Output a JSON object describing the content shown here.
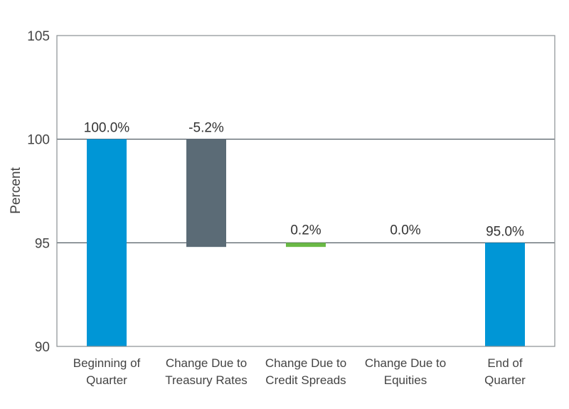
{
  "chart_data": {
    "type": "bar",
    "subtype": "waterfall",
    "title": "",
    "xlabel": "",
    "ylabel": "Percent",
    "ylim": [
      90,
      105
    ],
    "yticks": [
      90,
      95,
      100,
      105
    ],
    "grid": true,
    "legend": "none",
    "categories": [
      [
        "Beginning of",
        "Quarter"
      ],
      [
        "Change Due to",
        "Treasury Rates"
      ],
      [
        "Change Due to",
        "Credit Spreads"
      ],
      [
        "Change Due to",
        "Equities"
      ],
      [
        "End of",
        "Quarter"
      ]
    ],
    "bars": [
      {
        "base": 90,
        "value": 100.0,
        "label": "100.0%",
        "color": "#0096d6"
      },
      {
        "base": 94.8,
        "value": 100.0,
        "label": "-5.2%",
        "color": "#5b6b76"
      },
      {
        "base": 94.8,
        "value": 95.0,
        "label": "0.2%",
        "color": "#6ab945"
      },
      {
        "base": 95.0,
        "value": 95.0,
        "label": "0.0%",
        "color": "#6ab945"
      },
      {
        "base": 90,
        "value": 95.0,
        "label": "95.0%",
        "color": "#0096d6"
      }
    ]
  }
}
